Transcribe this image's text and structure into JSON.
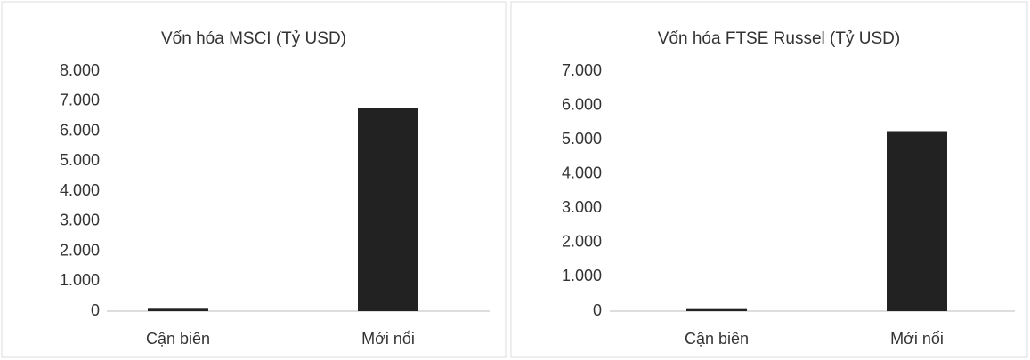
{
  "chart_data": [
    {
      "type": "bar",
      "title": "Vốn hóa MSCI (Tỷ USD)",
      "categories": [
        "Cận biên",
        "Mới nổi"
      ],
      "values": [
        80,
        6780
      ],
      "color": "#222222",
      "ylim": [
        0,
        8000
      ],
      "yticks": [
        {
          "value": 0,
          "label": "0"
        },
        {
          "value": 1000,
          "label": "1.000"
        },
        {
          "value": 2000,
          "label": "2.000"
        },
        {
          "value": 3000,
          "label": "3.000"
        },
        {
          "value": 4000,
          "label": "4.000"
        },
        {
          "value": 5000,
          "label": "5.000"
        },
        {
          "value": 6000,
          "label": "6.000"
        },
        {
          "value": 7000,
          "label": "7.000"
        },
        {
          "value": 8000,
          "label": "8.000"
        }
      ],
      "grid": false
    },
    {
      "type": "bar",
      "title": "Vốn hóa FTSE Russel (Tỷ USD)",
      "categories": [
        "Cận biên",
        "Mới nổi"
      ],
      "values": [
        60,
        5250
      ],
      "color": "#222222",
      "ylim": [
        0,
        7000
      ],
      "yticks": [
        {
          "value": 0,
          "label": "0"
        },
        {
          "value": 1000,
          "label": "1.000"
        },
        {
          "value": 2000,
          "label": "2.000"
        },
        {
          "value": 3000,
          "label": "3.000"
        },
        {
          "value": 4000,
          "label": "4.000"
        },
        {
          "value": 5000,
          "label": "5.000"
        },
        {
          "value": 6000,
          "label": "6.000"
        },
        {
          "value": 7000,
          "label": "7.000"
        }
      ],
      "grid": false
    }
  ]
}
